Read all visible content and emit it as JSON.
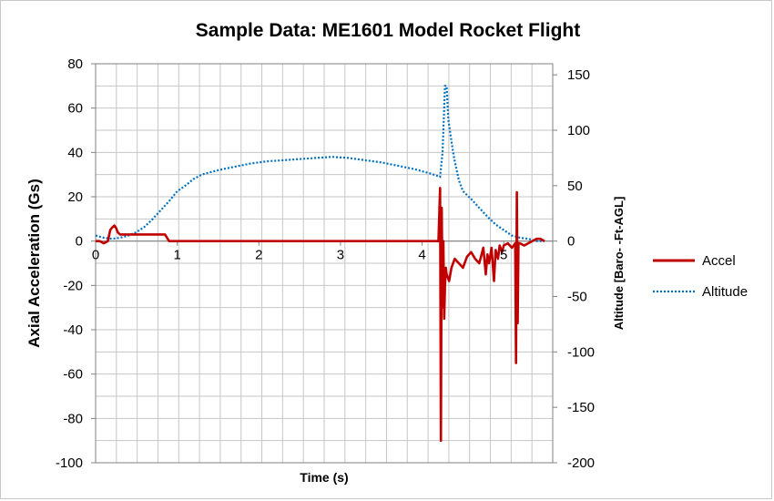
{
  "chart_data": {
    "type": "line",
    "title": "Sample Data: ME1601 Model Rocket Flight",
    "xlabel": "Time (s)",
    "ylabel": "Axial Acceleration (Gs)",
    "y2label": "Altitude [Baro- -Ft-AGL]",
    "xlim": [
      0,
      5.6
    ],
    "ylim": [
      -100,
      80
    ],
    "y2lim": [
      -200,
      160
    ],
    "x_ticks": [
      "0",
      "1",
      "2",
      "3",
      "4",
      "5"
    ],
    "y_ticks": [
      "80",
      "60",
      "40",
      "20",
      "0",
      "-20",
      "-40",
      "-60",
      "-80",
      "-100"
    ],
    "y2_ticks": [
      "150",
      "100",
      "50",
      "0",
      "-50",
      "-100",
      "-150",
      "-200"
    ],
    "grid": true,
    "legend": "right",
    "series": [
      {
        "name": "Accel",
        "axis": "left",
        "color": "#c00000",
        "style": "solid",
        "x": [
          0,
          0.05,
          0.1,
          0.15,
          0.18,
          0.2,
          0.23,
          0.25,
          0.27,
          0.3,
          0.35,
          0.5,
          0.7,
          0.85,
          0.9,
          1.0,
          2.0,
          3.0,
          4.0,
          4.2,
          4.22,
          4.23,
          4.24,
          4.25,
          4.26,
          4.27,
          4.28,
          4.29,
          4.3,
          4.33,
          4.36,
          4.4,
          4.45,
          4.5,
          4.55,
          4.6,
          4.65,
          4.7,
          4.75,
          4.78,
          4.8,
          4.82,
          4.85,
          4.88,
          4.9,
          4.93,
          4.95,
          4.98,
          5.0,
          5.05,
          5.1,
          5.14,
          5.15,
          5.16,
          5.17,
          5.18,
          5.2,
          5.25,
          5.3,
          5.35,
          5.4,
          5.45,
          5.5
        ],
        "values": [
          0,
          0,
          -1,
          0,
          5,
          6,
          7,
          6,
          4,
          3,
          3,
          3,
          3,
          3,
          0,
          0,
          0,
          0,
          0,
          0,
          24,
          -90,
          15,
          -30,
          0,
          -35,
          -20,
          -12,
          -15,
          -18,
          -12,
          -8,
          -10,
          -12,
          -7,
          -5,
          -8,
          -10,
          -3,
          -15,
          -6,
          -10,
          -3,
          -18,
          -4,
          -8,
          -2,
          -5,
          -2,
          -1,
          -3,
          -1,
          -55,
          22,
          -37,
          -1,
          -1,
          -2,
          -1,
          0,
          1,
          1,
          0
        ]
      },
      {
        "name": "Altitude",
        "axis": "right",
        "color": "#0070c0",
        "style": "dotted",
        "x": [
          0,
          0.1,
          0.2,
          0.3,
          0.4,
          0.5,
          0.6,
          0.7,
          0.8,
          0.9,
          1.0,
          1.1,
          1.2,
          1.3,
          1.4,
          1.5,
          1.7,
          1.9,
          2.1,
          2.3,
          2.5,
          2.7,
          2.9,
          3.1,
          3.3,
          3.5,
          3.7,
          3.9,
          4.1,
          4.22,
          4.25,
          4.28,
          4.3,
          4.32,
          4.35,
          4.38,
          4.4,
          4.45,
          4.5,
          4.6,
          4.7,
          4.8,
          4.9,
          5.0,
          5.1,
          5.2,
          5.3,
          5.4,
          5.5
        ],
        "values": [
          5,
          3,
          2,
          3,
          5,
          8,
          13,
          20,
          28,
          36,
          45,
          50,
          56,
          60,
          62,
          64,
          67,
          70,
          72,
          73,
          74,
          75,
          76,
          75,
          73,
          71,
          68,
          65,
          61,
          58,
          80,
          140,
          140,
          110,
          95,
          80,
          72,
          55,
          45,
          38,
          30,
          22,
          15,
          10,
          5,
          3,
          2,
          0,
          0
        ]
      }
    ]
  }
}
